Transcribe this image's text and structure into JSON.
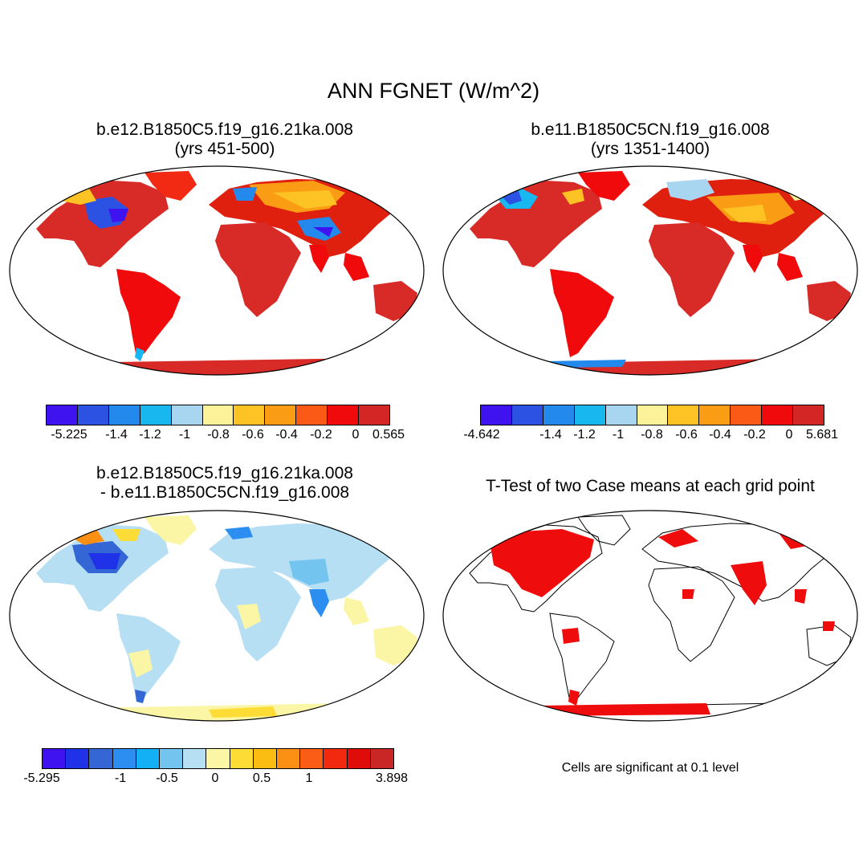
{
  "title": "ANN FGNET (W/m^2)",
  "panels": [
    {
      "title_line1": "b.e12.B1850C5.f19_g16.21ka.008",
      "title_line2": "(yrs 451-500)",
      "colorbar": {
        "colors": [
          "#3f12f0",
          "#2b52e3",
          "#2489ec",
          "#18b7f0",
          "#a8d6f0",
          "#fbf29a",
          "#fdc223",
          "#fb9d14",
          "#fa5a15",
          "#f00a0b",
          "#d42624"
        ],
        "ticks": [
          "-5.225",
          "-1.4",
          "-1.2",
          "-1",
          "-0.8",
          "-0.6",
          "-0.4",
          "-0.2",
          "0",
          "0.565"
        ]
      }
    },
    {
      "title_line1": "b.e11.B1850C5CN.f19_g16.008",
      "title_line2": "(yrs 1351-1400)",
      "colorbar": {
        "colors": [
          "#3f12f0",
          "#2b52e3",
          "#2489ec",
          "#18b7f0",
          "#a8d6f0",
          "#fbf29a",
          "#fdc223",
          "#fb9d14",
          "#fa5a15",
          "#f00a0b",
          "#d42624"
        ],
        "ticks": [
          "-4.642",
          "-1.4",
          "-1.2",
          "-1",
          "-0.8",
          "-0.6",
          "-0.4",
          "-0.2",
          "0",
          "5.681"
        ]
      }
    },
    {
      "title_line1": "b.e12.B1850C5.f19_g16.21ka.008",
      "title_line2": "- b.e11.B1850C5CN.f19_g16.008",
      "colorbar": {
        "colors": [
          "#3f12f0",
          "#1f32e8",
          "#3466d6",
          "#2b8ef0",
          "#14b0f5",
          "#73c5ef",
          "#b6dff3",
          "#fbf6a6",
          "#fddc36",
          "#fbbd12",
          "#fb9014",
          "#fb5c16",
          "#f2280f",
          "#e00c0a",
          "#c92626"
        ],
        "ticks": [
          "-5.295",
          "-1",
          "-0.5",
          "0",
          "0.5",
          "1",
          "3.898"
        ]
      }
    },
    {
      "title_line1": "T-Test of two Case means at each grid point",
      "title_line2": "",
      "note": "Cells are significant at 0.1 level"
    }
  ]
}
